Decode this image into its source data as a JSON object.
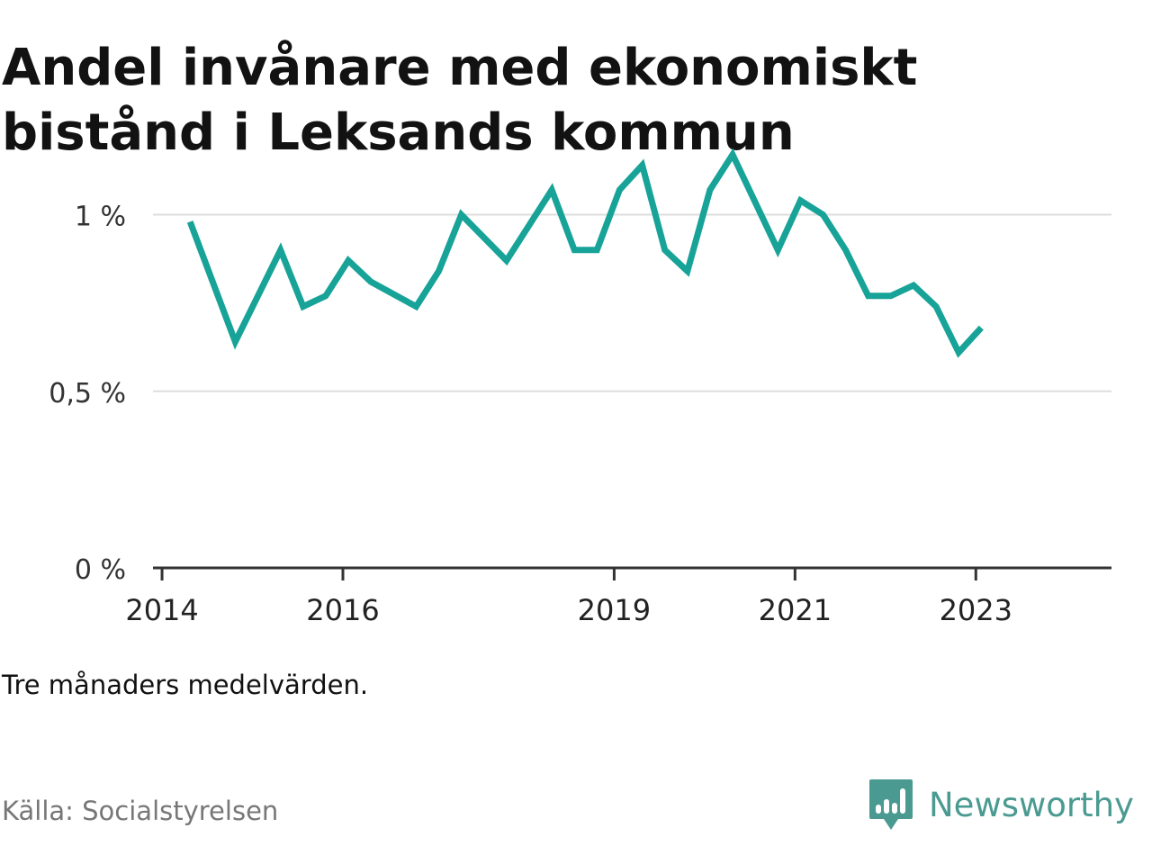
{
  "title": "Andel invånare med ekonomiskt bistånd i Leksands kommun",
  "subtitle": "Tre månaders medelvärden.",
  "source": "Källa: Socialstyrelsen",
  "brand": {
    "name": "Newsworthy",
    "logo_icon": "newsworthy-chart-bubble-icon"
  },
  "colors": {
    "line": "#17a398",
    "grid": "#dddddd",
    "axis": "#333333",
    "brand": "#4a9a91"
  },
  "chart_data": {
    "type": "line",
    "title": "Andel invånare med ekonomiskt bistånd i Leksands kommun",
    "xlabel": "",
    "ylabel": "",
    "x_ticks": [
      {
        "label": "2014",
        "value": 2014.0
      },
      {
        "label": "2016",
        "value": 2016.0
      },
      {
        "label": "2019",
        "value": 2019.0
      },
      {
        "label": "2021",
        "value": 2021.0
      },
      {
        "label": "2023",
        "value": 2023.0
      }
    ],
    "y_ticks": [
      {
        "label": "0 %",
        "value": 0
      },
      {
        "label": "0,5 %",
        "value": 0.5
      },
      {
        "label": "1 %",
        "value": 1.0
      }
    ],
    "ylim": [
      0,
      1.2
    ],
    "xlim": [
      2013.9,
      2024.5
    ],
    "grid": true,
    "legend": "none",
    "series": [
      {
        "x": [
          2014.31,
          2014.81,
          2015.31,
          2015.56,
          2015.81,
          2016.06,
          2016.31,
          2016.81,
          2017.06,
          2017.31,
          2017.81,
          2018.31,
          2018.56,
          2018.81,
          2019.06,
          2019.31,
          2019.56,
          2019.81,
          2020.06,
          2020.31,
          2020.81,
          2021.06,
          2021.31,
          2021.56,
          2021.81,
          2022.06,
          2022.31,
          2022.56,
          2022.81,
          2023.06
        ],
        "y": [
          0.98,
          0.64,
          0.9,
          0.74,
          0.77,
          0.87,
          0.81,
          0.74,
          0.84,
          1.0,
          0.87,
          1.07,
          0.9,
          0.9,
          1.07,
          1.14,
          0.9,
          0.84,
          1.07,
          1.17,
          0.9,
          1.04,
          1.0,
          0.9,
          0.77,
          0.77,
          0.8,
          0.74,
          0.61,
          0.68
        ]
      }
    ]
  }
}
